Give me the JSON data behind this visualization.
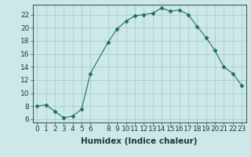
{
  "x": [
    0,
    1,
    2,
    3,
    4,
    5,
    6,
    8,
    9,
    10,
    11,
    12,
    13,
    14,
    15,
    16,
    17,
    18,
    19,
    20,
    21,
    22,
    23
  ],
  "y": [
    8.0,
    8.2,
    7.2,
    6.2,
    6.5,
    7.5,
    13.0,
    17.8,
    19.8,
    21.0,
    21.8,
    22.0,
    22.2,
    23.0,
    22.5,
    22.7,
    22.0,
    20.2,
    18.5,
    16.5,
    14.0,
    13.0,
    11.2
  ],
  "line_color": "#1f6f5e",
  "marker": "D",
  "marker_size": 2.5,
  "bg_color": "#cce8e8",
  "grid_color": "#aacccc",
  "xlabel": "Humidex (Indice chaleur)",
  "xlim": [
    -0.5,
    23.5
  ],
  "ylim": [
    5.5,
    23.5
  ],
  "xticks": [
    0,
    1,
    2,
    3,
    4,
    5,
    6,
    8,
    9,
    10,
    11,
    12,
    13,
    14,
    15,
    16,
    17,
    18,
    19,
    20,
    21,
    22,
    23
  ],
  "yticks": [
    6,
    8,
    10,
    12,
    14,
    16,
    18,
    20,
    22
  ],
  "tick_fontsize": 6.5,
  "label_fontsize": 7.5
}
